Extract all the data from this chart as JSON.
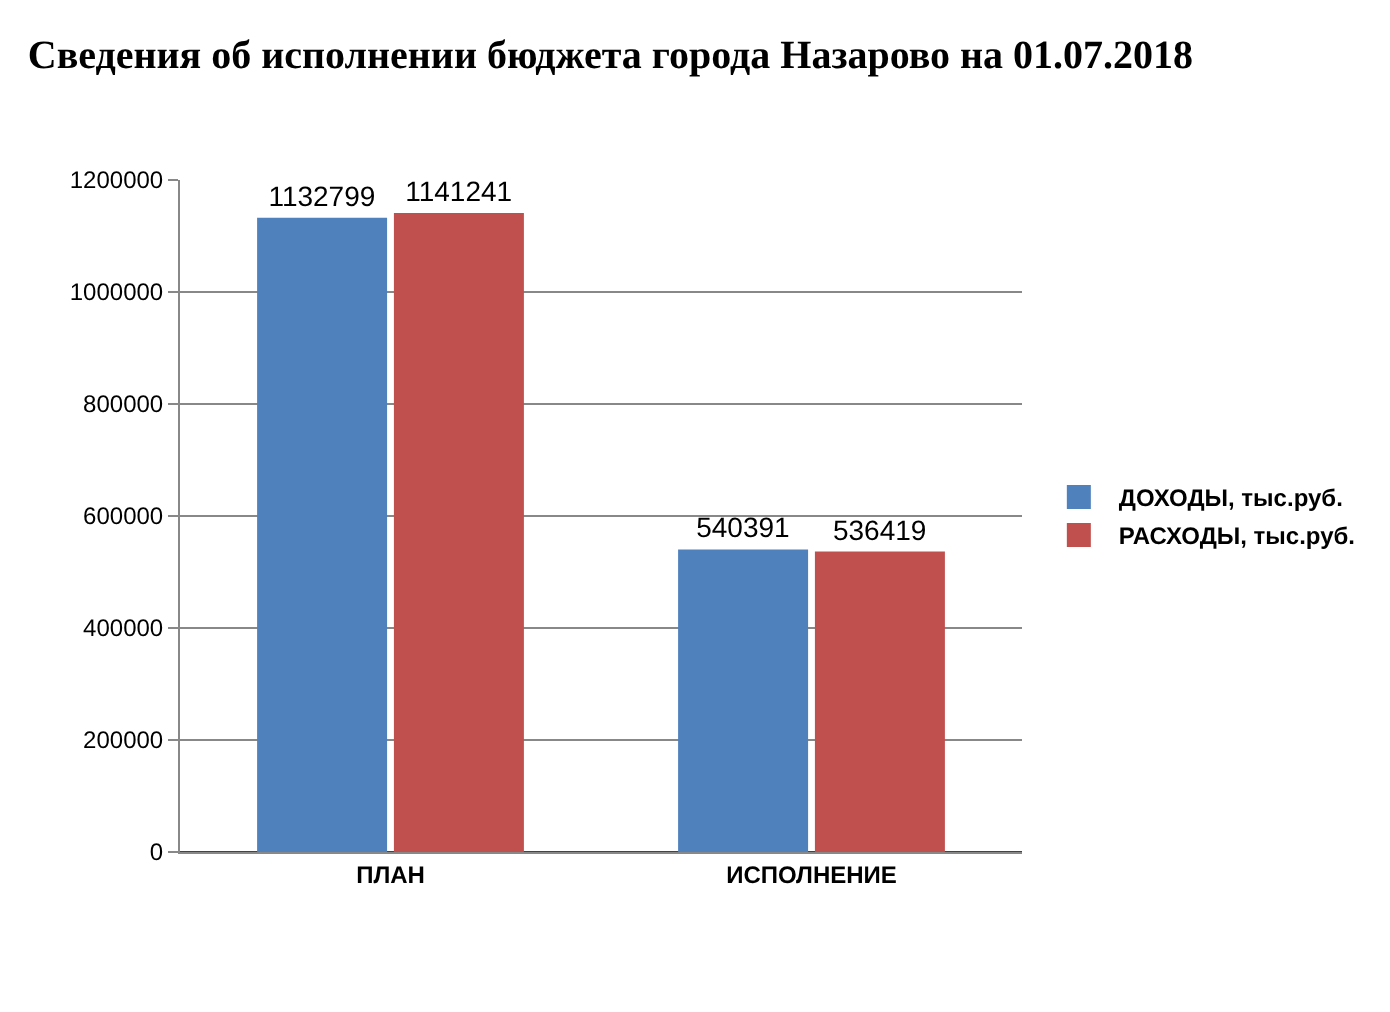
{
  "chart_data": {
    "type": "bar",
    "title": "Сведения об исполнении бюджета города Назарово на 01.07.2018",
    "categories": [
      "ПЛАН",
      "ИСПОЛНЕНИЕ"
    ],
    "series": [
      {
        "name": "ДОХОДЫ, тыс.руб.",
        "color": "#4f81bd",
        "values": [
          1132799,
          540391
        ]
      },
      {
        "name": "РАСХОДЫ, тыс.руб.",
        "color": "#c0504d",
        "values": [
          1141241,
          536419
        ]
      }
    ],
    "ylim": [
      0,
      1200000
    ],
    "yticks": [
      0,
      200000,
      400000,
      600000,
      800000,
      1000000,
      1200000
    ],
    "grid": "y",
    "legend": "right",
    "data_labels": true
  }
}
